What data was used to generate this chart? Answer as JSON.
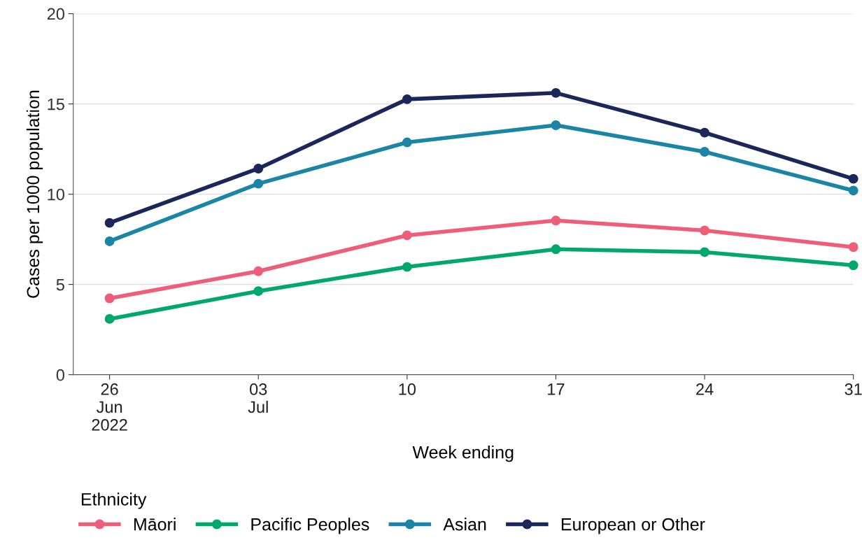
{
  "chart_data": {
    "type": "line",
    "xlabel": "Week ending",
    "ylabel": "Cases per 1000 population",
    "legend_title": "Ethnicity",
    "x": [
      "2022-06-26",
      "2022-07-03",
      "2022-07-10",
      "2022-07-17",
      "2022-07-24",
      "2022-07-31"
    ],
    "series": [
      {
        "name": "Māori",
        "color": "#ef5e78",
        "values": [
          4.23,
          5.73,
          7.72,
          8.54,
          7.99,
          7.07
        ]
      },
      {
        "name": "Pacific Peoples",
        "color": "#00a86b",
        "values": [
          3.09,
          4.63,
          5.97,
          6.95,
          6.79,
          6.06
        ]
      },
      {
        "name": "Asian",
        "color": "#1a85a4",
        "values": [
          7.39,
          10.58,
          12.87,
          13.82,
          12.35,
          10.2
        ]
      },
      {
        "name": "European or Other",
        "color": "#1b2759",
        "values": [
          8.41,
          11.42,
          15.26,
          15.61,
          13.41,
          10.85
        ]
      }
    ],
    "xlim": [
      "2022-06-24T07:00",
      "2022-07-31"
    ],
    "xticks": [
      {
        "value": "2022-06-26",
        "label": "26\nJun\n2022"
      },
      {
        "value": "2022-07-03",
        "label": "03\nJul"
      },
      {
        "value": "2022-07-10",
        "label": "10"
      },
      {
        "value": "2022-07-17",
        "label": "17"
      },
      {
        "value": "2022-07-24",
        "label": "24"
      },
      {
        "value": "2022-07-31",
        "label": "31"
      }
    ],
    "ylim": [
      0,
      20
    ],
    "yticks": [
      0,
      5,
      10,
      15,
      20
    ],
    "grid": "y",
    "legend": "bottom left",
    "marker": "circle",
    "line_style": "solid"
  }
}
